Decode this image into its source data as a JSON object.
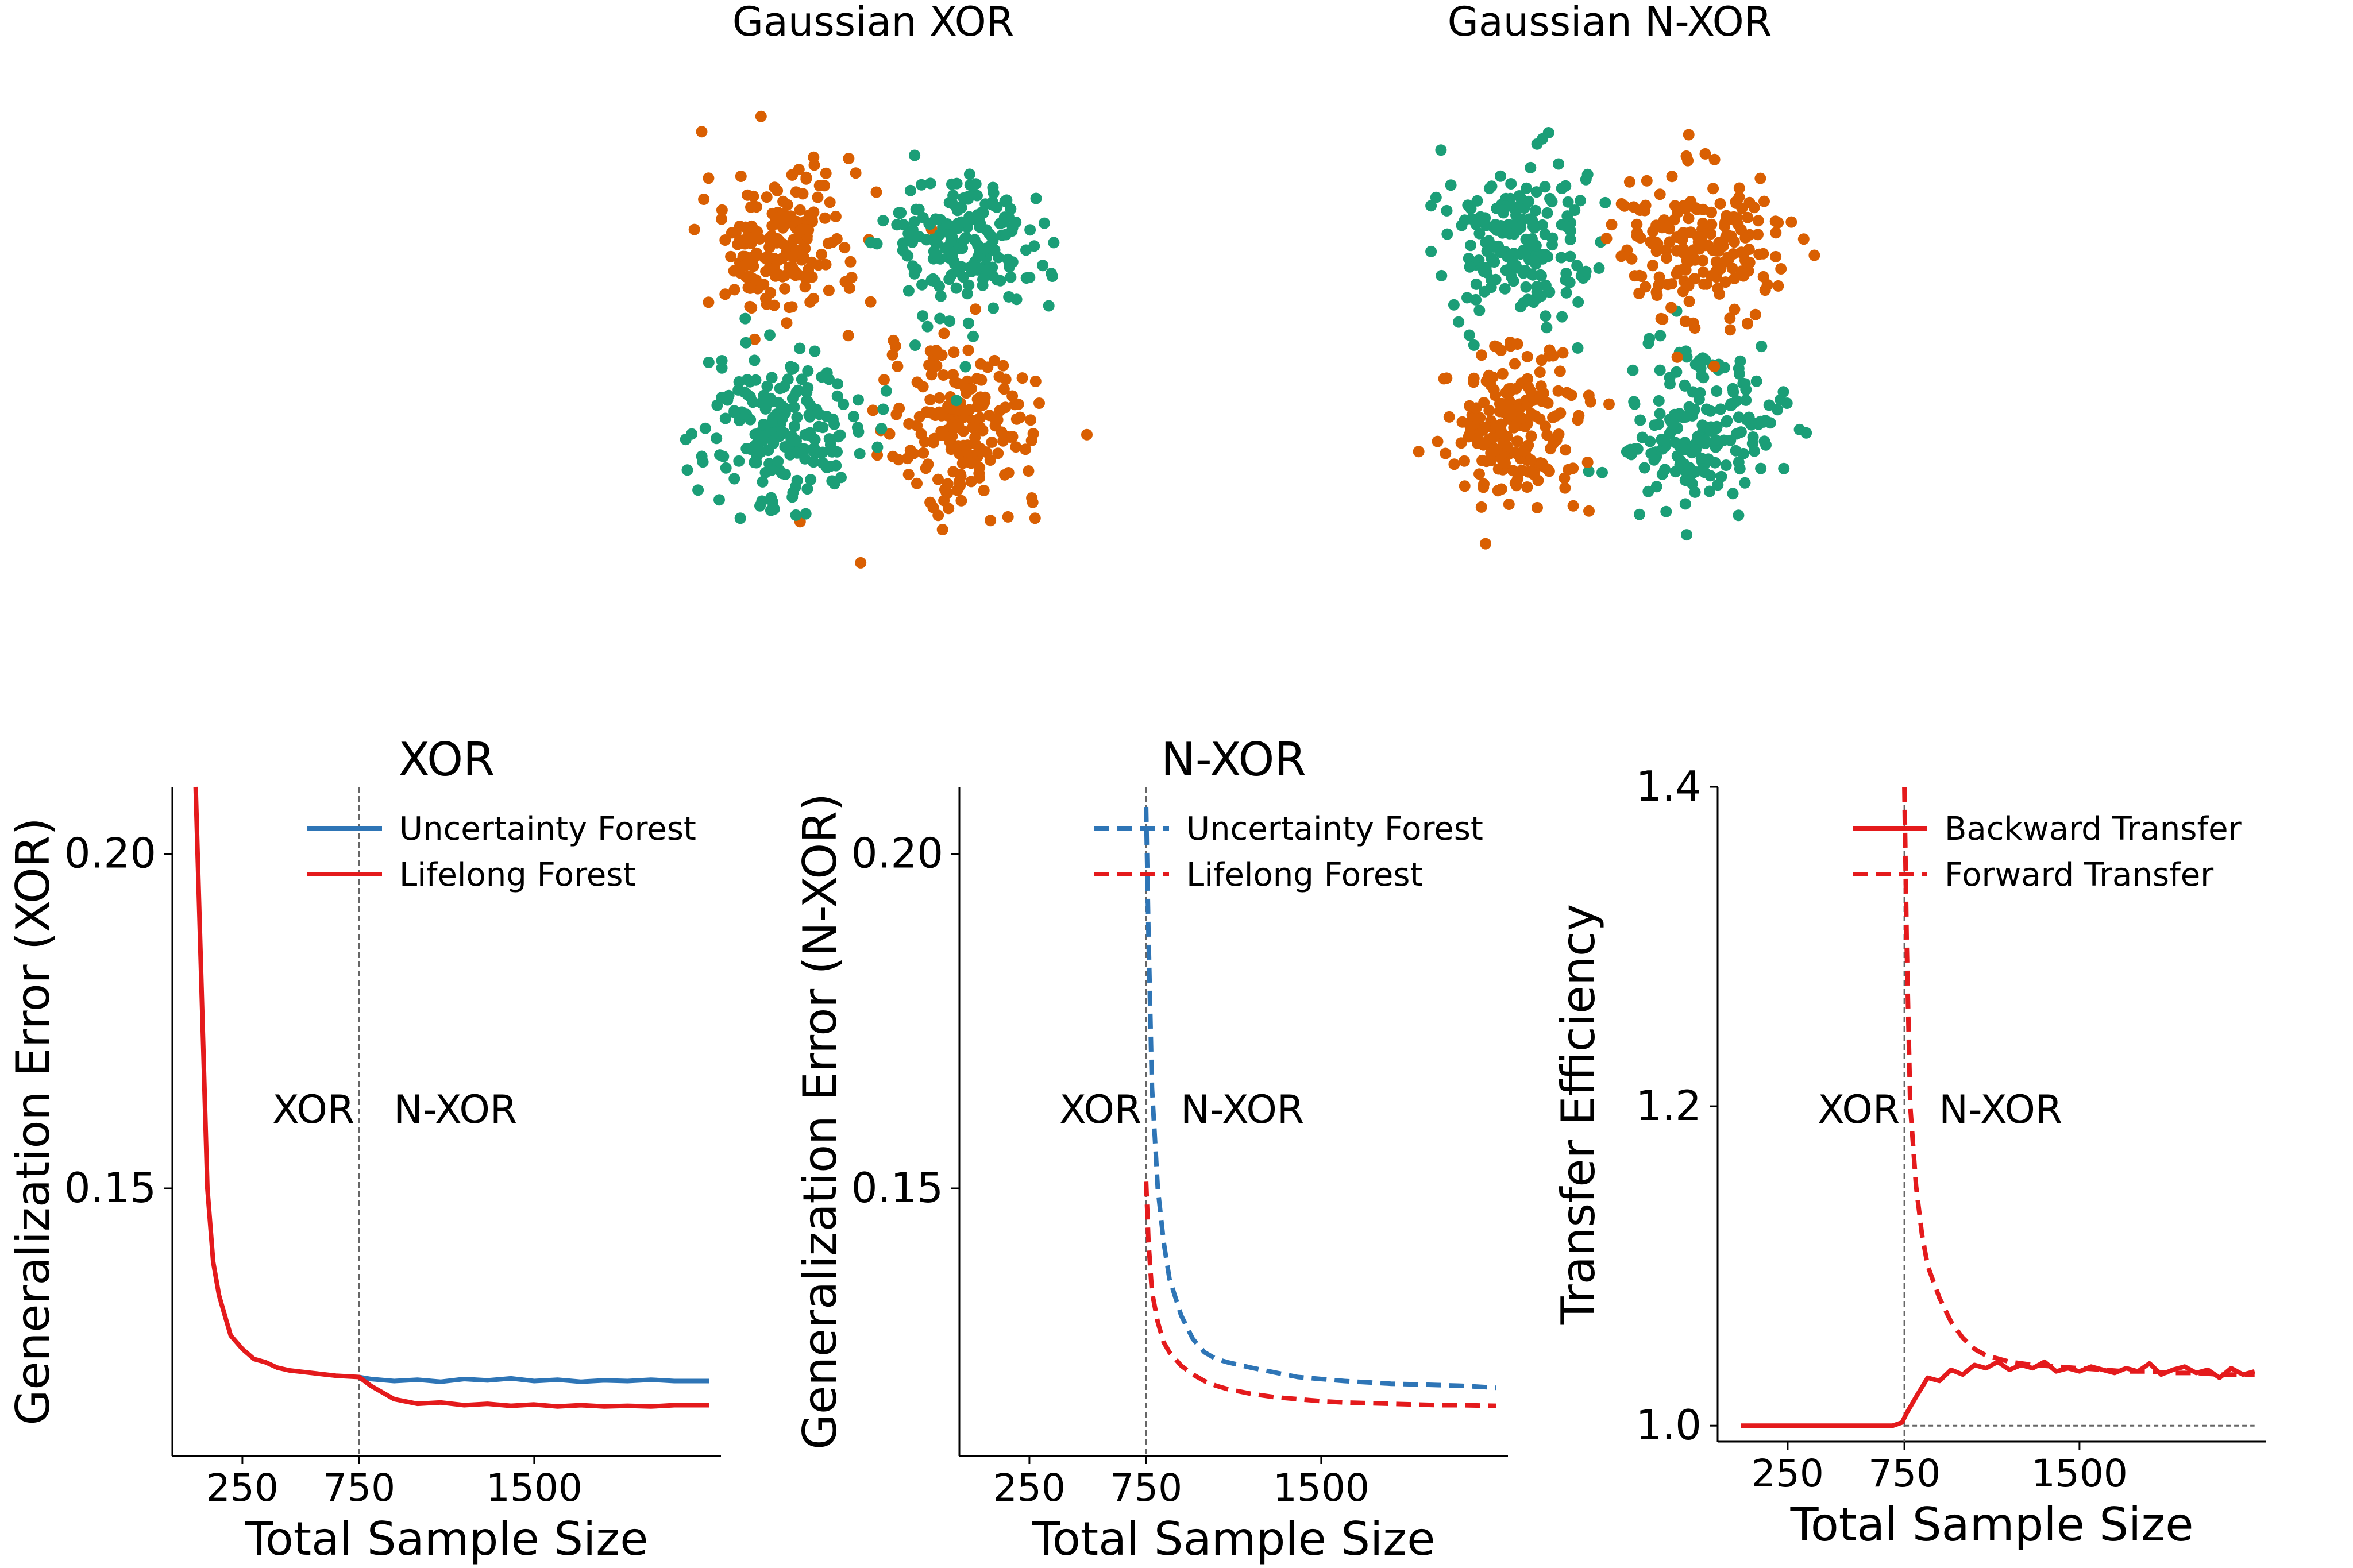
{
  "chart_data": [
    {
      "type": "scatter",
      "title": "Gaussian XOR",
      "xlim": [
        -2.4,
        2.4
      ],
      "ylim": [
        -2.4,
        2.4
      ],
      "axes": "off",
      "clusters": [
        {
          "class": 0,
          "center": [
            -1,
            1
          ],
          "n": 190
        },
        {
          "class": 0,
          "center": [
            1,
            -1
          ],
          "n": 190
        },
        {
          "class": 1,
          "center": [
            1,
            1
          ],
          "n": 190
        },
        {
          "class": 1,
          "center": [
            -1,
            -1
          ],
          "n": 190
        }
      ]
    },
    {
      "type": "scatter",
      "title": "Gaussian N-XOR",
      "xlim": [
        -2.4,
        2.4
      ],
      "ylim": [
        -2.4,
        2.4
      ],
      "axes": "off",
      "clusters": [
        {
          "class": 1,
          "center": [
            -1,
            1
          ],
          "n": 190
        },
        {
          "class": 1,
          "center": [
            1,
            -1
          ],
          "n": 190
        },
        {
          "class": 0,
          "center": [
            1,
            1
          ],
          "n": 190
        },
        {
          "class": 0,
          "center": [
            -1,
            -1
          ],
          "n": 190
        }
      ]
    },
    {
      "type": "line",
      "title": "XOR",
      "xlabel": "Total Sample Size",
      "ylabel": "Generalization Error (XOR)",
      "xlim": [
        -50,
        2300
      ],
      "ylim": [
        0.11,
        0.21
      ],
      "xticks": [
        250,
        750,
        1500
      ],
      "yticks": [
        0.15,
        0.2
      ],
      "ytick_labels": [
        "0.15",
        "0.20"
      ],
      "vline": 750,
      "annotations": [
        "XOR",
        "N-XOR"
      ],
      "legend": "top-right",
      "series": [
        {
          "name": "Uncertainty Forest",
          "style": "solid",
          "color": "#2e75b6",
          "x": [
            750,
            800,
            900,
            1000,
            1100,
            1200,
            1300,
            1400,
            1500,
            1600,
            1700,
            1800,
            1900,
            2000,
            2100,
            2250
          ],
          "y": [
            0.1218,
            0.1215,
            0.1212,
            0.1214,
            0.1211,
            0.1215,
            0.1213,
            0.1216,
            0.1212,
            0.1214,
            0.1211,
            0.1213,
            0.1212,
            0.1214,
            0.1212,
            0.1212
          ]
        },
        {
          "name": "Lifelong Forest",
          "style": "solid",
          "color": "#e41a1c",
          "x": [
            50,
            75,
            100,
            125,
            150,
            175,
            200,
            250,
            300,
            350,
            400,
            450,
            500,
            550,
            600,
            650,
            700,
            750,
            800,
            900,
            1000,
            1100,
            1200,
            1300,
            1400,
            1500,
            1600,
            1700,
            1800,
            1900,
            2000,
            2100,
            2250
          ],
          "y": [
            0.21,
            0.18,
            0.15,
            0.139,
            0.134,
            0.131,
            0.128,
            0.126,
            0.1245,
            0.124,
            0.1232,
            0.1228,
            0.1226,
            0.1224,
            0.1222,
            0.122,
            0.1219,
            0.1218,
            0.1205,
            0.1185,
            0.1178,
            0.118,
            0.1176,
            0.1178,
            0.1175,
            0.1177,
            0.1174,
            0.1176,
            0.1174,
            0.1175,
            0.1174,
            0.1176,
            0.1176
          ]
        }
      ]
    },
    {
      "type": "line",
      "title": "N-XOR",
      "xlabel": "Total Sample Size",
      "ylabel": "Generalization Error (N-XOR)",
      "xlim": [
        -50,
        2300
      ],
      "ylim": [
        0.11,
        0.21
      ],
      "xticks": [
        250,
        750,
        1500
      ],
      "yticks": [
        0.15,
        0.2
      ],
      "ytick_labels": [
        "0.15",
        "0.20"
      ],
      "vline": 750,
      "annotations": [
        "XOR",
        "N-XOR"
      ],
      "legend": "top-right",
      "series": [
        {
          "name": "Uncertainty Forest",
          "style": "dashed",
          "color": "#2e75b6",
          "x": [
            750,
            760,
            775,
            800,
            825,
            850,
            900,
            950,
            1000,
            1050,
            1100,
            1200,
            1300,
            1400,
            1500,
            1600,
            1700,
            1800,
            1900,
            2000,
            2100,
            2250
          ],
          "y": [
            0.207,
            0.188,
            0.165,
            0.15,
            0.142,
            0.1365,
            0.131,
            0.1275,
            0.1255,
            0.1245,
            0.124,
            0.1232,
            0.1225,
            0.1218,
            0.1215,
            0.1212,
            0.121,
            0.1208,
            0.1207,
            0.1206,
            0.1205,
            0.1202
          ]
        },
        {
          "name": "Lifelong Forest",
          "style": "dashed",
          "color": "#e41a1c",
          "x": [
            750,
            760,
            775,
            800,
            825,
            850,
            900,
            950,
            1000,
            1050,
            1100,
            1200,
            1300,
            1400,
            1500,
            1600,
            1700,
            1800,
            1900,
            2000,
            2100,
            2250
          ],
          "y": [
            0.151,
            0.142,
            0.1345,
            0.13,
            0.127,
            0.1255,
            0.1235,
            0.1222,
            0.1212,
            0.1205,
            0.12,
            0.1193,
            0.1188,
            0.1185,
            0.1182,
            0.118,
            0.1179,
            0.1178,
            0.1177,
            0.1176,
            0.1176,
            0.1175
          ]
        }
      ]
    },
    {
      "type": "line",
      "title": "",
      "xlabel": "Total Sample Size",
      "ylabel": "Transfer Efficiency",
      "xlim": [
        -50,
        2300
      ],
      "ylim": [
        0.99,
        1.4
      ],
      "xticks": [
        250,
        750,
        1500
      ],
      "yticks": [
        1.0,
        1.2,
        1.4
      ],
      "ytick_labels": [
        "1.0",
        "1.2",
        "1.4"
      ],
      "vline": 750,
      "hline": {
        "y": 1.0,
        "x": [
          750,
          2250
        ]
      },
      "annotations": [
        "XOR",
        "N-XOR"
      ],
      "legend": "top-right",
      "series": [
        {
          "name": "Backward Transfer",
          "style": "solid",
          "color": "#e41a1c",
          "x": [
            50,
            300,
            600,
            700,
            740,
            760,
            800,
            850,
            900,
            950,
            1000,
            1050,
            1100,
            1150,
            1200,
            1250,
            1300,
            1350,
            1400,
            1450,
            1500,
            1550,
            1600,
            1650,
            1700,
            1750,
            1800,
            1850,
            1900,
            1950,
            2000,
            2050,
            2100,
            2150,
            2200,
            2250
          ],
          "y": [
            1.0,
            1.0,
            1.0,
            1.0,
            1.002,
            1.008,
            1.018,
            1.03,
            1.028,
            1.035,
            1.032,
            1.038,
            1.036,
            1.04,
            1.035,
            1.038,
            1.036,
            1.04,
            1.034,
            1.036,
            1.034,
            1.037,
            1.035,
            1.033,
            1.036,
            1.034,
            1.039,
            1.032,
            1.035,
            1.037,
            1.033,
            1.035,
            1.03,
            1.036,
            1.032,
            1.034
          ]
        },
        {
          "name": "Forward Transfer",
          "style": "dashed",
          "color": "#e41a1c",
          "x": [
            750,
            760,
            775,
            800,
            825,
            850,
            900,
            950,
            1000,
            1050,
            1100,
            1150,
            1200,
            1300,
            1400,
            1500,
            1600,
            1700,
            1800,
            1900,
            2000,
            2100,
            2250
          ],
          "y": [
            1.4,
            1.3,
            1.2,
            1.15,
            1.12,
            1.1,
            1.08,
            1.065,
            1.055,
            1.048,
            1.044,
            1.042,
            1.04,
            1.038,
            1.037,
            1.036,
            1.035,
            1.034,
            1.034,
            1.033,
            1.033,
            1.032,
            1.032
          ]
        }
      ]
    }
  ]
}
